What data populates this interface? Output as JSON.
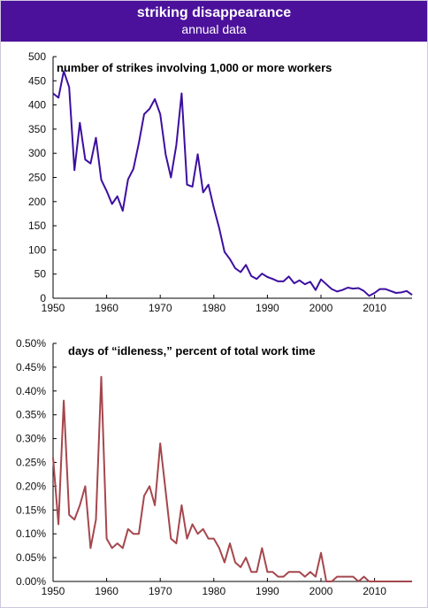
{
  "header": {
    "title": "striking disappearance",
    "subtitle": "annual data"
  },
  "colors": {
    "header_bg": "#4b119b",
    "series1": "#3d0fa0",
    "series2": "#a5474d"
  },
  "chart_data": [
    {
      "type": "line",
      "title": "number of strikes involving 1,000 or more workers",
      "xlim": [
        1950,
        2017
      ],
      "ylim": [
        0,
        500
      ],
      "xticks": [
        "1950",
        "1960",
        "1970",
        "1980",
        "1990",
        "2000",
        "2010"
      ],
      "yticks": [
        "0",
        "50",
        "100",
        "150",
        "200",
        "250",
        "300",
        "350",
        "400",
        "450",
        "500"
      ],
      "x": [
        1950,
        1951,
        1952,
        1953,
        1954,
        1955,
        1956,
        1957,
        1958,
        1959,
        1960,
        1961,
        1962,
        1963,
        1964,
        1965,
        1966,
        1967,
        1968,
        1969,
        1970,
        1971,
        1972,
        1973,
        1974,
        1975,
        1976,
        1977,
        1978,
        1979,
        1980,
        1981,
        1982,
        1983,
        1984,
        1985,
        1986,
        1987,
        1988,
        1989,
        1990,
        1991,
        1992,
        1993,
        1994,
        1995,
        1996,
        1997,
        1998,
        1999,
        2000,
        2001,
        2002,
        2003,
        2004,
        2005,
        2006,
        2007,
        2008,
        2009,
        2010,
        2011,
        2012,
        2013,
        2014,
        2015,
        2016,
        2017
      ],
      "values": [
        424,
        415,
        470,
        437,
        265,
        363,
        287,
        279,
        332,
        245,
        222,
        195,
        211,
        181,
        246,
        268,
        321,
        381,
        392,
        412,
        381,
        298,
        250,
        317,
        424,
        235,
        231,
        298,
        219,
        235,
        187,
        145,
        96,
        81,
        62,
        54,
        69,
        46,
        40,
        51,
        44,
        40,
        35,
        35,
        45,
        31,
        37,
        29,
        34,
        17,
        39,
        29,
        19,
        14,
        17,
        22,
        20,
        21,
        15,
        5,
        11,
        19,
        19,
        15,
        11,
        12,
        15,
        7
      ]
    },
    {
      "type": "line",
      "title": "days of “idleness,” percent of total work time",
      "xlim": [
        1950,
        2017
      ],
      "ylim": [
        0,
        0.5
      ],
      "xticks": [
        "1950",
        "1960",
        "1970",
        "1980",
        "1990",
        "2000",
        "2010"
      ],
      "yticks": [
        "0.00%",
        "0.05%",
        "0.10%",
        "0.15%",
        "0.20%",
        "0.25%",
        "0.30%",
        "0.35%",
        "0.40%",
        "0.45%",
        "0.50%"
      ],
      "x": [
        1950,
        1951,
        1952,
        1953,
        1954,
        1955,
        1956,
        1957,
        1958,
        1959,
        1960,
        1961,
        1962,
        1963,
        1964,
        1965,
        1966,
        1967,
        1968,
        1969,
        1970,
        1971,
        1972,
        1973,
        1974,
        1975,
        1976,
        1977,
        1978,
        1979,
        1980,
        1981,
        1982,
        1983,
        1984,
        1985,
        1986,
        1987,
        1988,
        1989,
        1990,
        1991,
        1992,
        1993,
        1994,
        1995,
        1996,
        1997,
        1998,
        1999,
        2000,
        2001,
        2002,
        2003,
        2004,
        2005,
        2006,
        2007,
        2008,
        2009,
        2010,
        2011,
        2012,
        2013,
        2014,
        2015,
        2016,
        2017
      ],
      "values": [
        0.26,
        0.12,
        0.38,
        0.14,
        0.13,
        0.16,
        0.2,
        0.07,
        0.13,
        0.43,
        0.09,
        0.07,
        0.08,
        0.07,
        0.11,
        0.1,
        0.1,
        0.18,
        0.2,
        0.16,
        0.29,
        0.19,
        0.09,
        0.08,
        0.16,
        0.09,
        0.12,
        0.1,
        0.11,
        0.09,
        0.09,
        0.07,
        0.04,
        0.08,
        0.04,
        0.03,
        0.05,
        0.02,
        0.02,
        0.07,
        0.02,
        0.02,
        0.01,
        0.01,
        0.02,
        0.02,
        0.02,
        0.01,
        0.02,
        0.01,
        0.06,
        0,
        0,
        0.01,
        0.01,
        0.01,
        0.01,
        0,
        0.01,
        0,
        0,
        0,
        0,
        0,
        0,
        0,
        0,
        0
      ]
    }
  ]
}
